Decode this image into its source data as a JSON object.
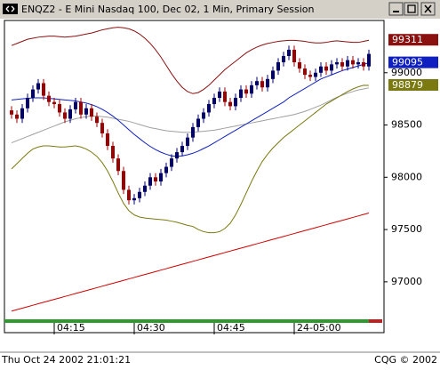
{
  "chart_data": {
    "type": "candlestick",
    "title": "ENQZ2 - E Mini Nasdaq 100, Dec 02, 1 Min, Primary Session",
    "timestamp": "Thu Oct 24 2002 21:01:21",
    "copyright": "CQG © 2002",
    "categories": [
      null,
      null,
      null,
      null,
      null,
      null,
      null,
      null,
      "04:15",
      null,
      null,
      null,
      null,
      null,
      null,
      null,
      null,
      null,
      null,
      null,
      null,
      null,
      null,
      "04:30",
      null,
      null,
      null,
      null,
      null,
      null,
      null,
      null,
      null,
      null,
      null,
      null,
      null,
      null,
      "04:45",
      null,
      null,
      null,
      null,
      null,
      null,
      null,
      null,
      null,
      null,
      null,
      null,
      null,
      null,
      "24-05:00",
      null,
      null,
      null,
      null,
      null,
      null,
      null,
      null,
      null,
      null,
      null,
      null,
      null,
      null
    ],
    "open": [
      98640,
      98600,
      98560,
      98660,
      98760,
      98840,
      98900,
      98780,
      98720,
      98700,
      98620,
      98560,
      98650,
      98720,
      98600,
      98660,
      98580,
      98520,
      98420,
      98300,
      98180,
      98060,
      97880,
      97780,
      97800,
      97860,
      97920,
      98000,
      97960,
      98040,
      98100,
      98180,
      98240,
      98300,
      98380,
      98480,
      98560,
      98620,
      98700,
      98760,
      98820,
      98720,
      98680,
      98760,
      98840,
      98800,
      98880,
      98920,
      98860,
      98940,
      99020,
      99100,
      99160,
      99220,
      99100,
      99040,
      98980,
      98960,
      99000,
      99060,
      99020,
      99080,
      99100,
      99060,
      99120,
      99080,
      99100,
      99060
    ],
    "high": [
      98680,
      98640,
      98700,
      98800,
      98880,
      98940,
      98940,
      98820,
      98760,
      98740,
      98660,
      98690,
      98760,
      98760,
      98700,
      98700,
      98620,
      98560,
      98460,
      98340,
      98220,
      98100,
      97920,
      97840,
      97900,
      97960,
      98040,
      98040,
      98080,
      98140,
      98220,
      98280,
      98340,
      98420,
      98520,
      98600,
      98660,
      98740,
      98800,
      98860,
      98860,
      98760,
      98800,
      98880,
      98880,
      98920,
      98960,
      98960,
      98980,
      99060,
      99140,
      99200,
      99260,
      99260,
      99140,
      99080,
      99020,
      99040,
      99100,
      99100,
      99120,
      99140,
      99140,
      99160,
      99160,
      99140,
      99140,
      99220
    ],
    "low": [
      98560,
      98520,
      98520,
      98620,
      98720,
      98800,
      98740,
      98680,
      98660,
      98580,
      98520,
      98520,
      98610,
      98560,
      98560,
      98540,
      98480,
      98380,
      98260,
      98140,
      98020,
      97840,
      97740,
      97740,
      97760,
      97820,
      97880,
      97920,
      97920,
      98000,
      98060,
      98140,
      98200,
      98260,
      98340,
      98440,
      98520,
      98580,
      98660,
      98720,
      98680,
      98640,
      98640,
      98720,
      98760,
      98760,
      98840,
      98820,
      98820,
      98900,
      98980,
      99060,
      99120,
      99060,
      99000,
      98940,
      98920,
      98920,
      98960,
      98980,
      98980,
      99040,
      99020,
      99020,
      99040,
      99040,
      99020,
      99020
    ],
    "close": [
      98600,
      98560,
      98660,
      98760,
      98840,
      98900,
      98780,
      98720,
      98700,
      98620,
      98560,
      98650,
      98720,
      98600,
      98660,
      98580,
      98520,
      98420,
      98300,
      98180,
      98060,
      97880,
      97780,
      97800,
      97860,
      97920,
      98000,
      97960,
      98040,
      98100,
      98180,
      98240,
      98300,
      98380,
      98480,
      98560,
      98620,
      98700,
      98760,
      98820,
      98720,
      98680,
      98760,
      98840,
      98800,
      98880,
      98920,
      98860,
      98940,
      99020,
      99100,
      99160,
      99220,
      99100,
      99040,
      98980,
      98960,
      99000,
      99060,
      99020,
      99080,
      99100,
      99060,
      99120,
      99080,
      99100,
      99060,
      99180
    ],
    "up_color": "#00006e",
    "down_color": "#9c0000",
    "series": [
      {
        "color": "#a0a0a0",
        "value_flag": false,
        "values": [
          98330,
          98350,
          98370,
          98390,
          98410,
          98430,
          98450,
          98470,
          98490,
          98510,
          98530,
          98545,
          98560,
          98570,
          98580,
          98585,
          98585,
          98580,
          98575,
          98565,
          98555,
          98545,
          98535,
          98520,
          98505,
          98490,
          98475,
          98465,
          98455,
          98445,
          98440,
          98435,
          98430,
          98430,
          98430,
          98435,
          98440,
          98445,
          98450,
          98460,
          98470,
          98480,
          98490,
          98500,
          98510,
          98520,
          98530,
          98540,
          98550,
          98560,
          98570,
          98580,
          98590,
          98600,
          98615,
          98630,
          98650,
          98670,
          98690,
          98715,
          98740,
          98765,
          98785,
          98805,
          98820,
          98835,
          98845,
          98855
        ]
      },
      {
        "color": "#d00000",
        "value_flag": false,
        "values": [
          96720,
          96734,
          96748,
          96762,
          96776,
          96790,
          96804,
          96818,
          96832,
          96846,
          96860,
          96874,
          96888,
          96902,
          96916,
          96930,
          96944,
          96958,
          96972,
          96986,
          97000,
          97014,
          97028,
          97042,
          97056,
          97070,
          97084,
          97098,
          97112,
          97126,
          97140,
          97154,
          97168,
          97182,
          97196,
          97210,
          97224,
          97238,
          97252,
          97266,
          97280,
          97294,
          97308,
          97322,
          97336,
          97350,
          97364,
          97378,
          97392,
          97406,
          97420,
          97434,
          97448,
          97462,
          97476,
          97490,
          97504,
          97518,
          97532,
          97546,
          97560,
          97574,
          97588,
          97602,
          97616,
          97630,
          97644,
          97658
        ]
      },
      {
        "color": "#8b1010",
        "value_flag": true,
        "values": [
          99260,
          99280,
          99300,
          99320,
          99330,
          99340,
          99345,
          99350,
          99350,
          99345,
          99340,
          99345,
          99350,
          99360,
          99370,
          99380,
          99395,
          99410,
          99420,
          99430,
          99435,
          99430,
          99420,
          99400,
          99370,
          99330,
          99280,
          99220,
          99150,
          99070,
          98990,
          98920,
          98860,
          98820,
          98800,
          98810,
          98840,
          98880,
          98930,
          98980,
          99030,
          99070,
          99110,
          99150,
          99190,
          99220,
          99245,
          99265,
          99280,
          99290,
          99300,
          99305,
          99310,
          99310,
          99305,
          99300,
          99290,
          99285,
          99285,
          99290,
          99300,
          99305,
          99300,
          99295,
          99290,
          99290,
          99300,
          99311
        ]
      },
      {
        "color": "#1020c0",
        "value_flag": true,
        "values": [
          98740,
          98745,
          98750,
          98755,
          98760,
          98760,
          98760,
          98755,
          98750,
          98745,
          98740,
          98735,
          98730,
          98720,
          98710,
          98695,
          98675,
          98650,
          98620,
          98585,
          98545,
          98500,
          98455,
          98410,
          98370,
          98330,
          98295,
          98265,
          98240,
          98220,
          98205,
          98200,
          98205,
          98215,
          98230,
          98250,
          98275,
          98300,
          98330,
          98360,
          98390,
          98420,
          98450,
          98480,
          98510,
          98540,
          98570,
          98600,
          98630,
          98660,
          98690,
          98720,
          98760,
          98790,
          98820,
          98850,
          98880,
          98910,
          98940,
          98960,
          98980,
          99000,
          99020,
          99035,
          99050,
          99065,
          99080,
          99095
        ]
      },
      {
        "color": "#7a7a10",
        "value_flag": true,
        "values": [
          98080,
          98130,
          98180,
          98230,
          98270,
          98290,
          98300,
          98300,
          98295,
          98290,
          98290,
          98295,
          98300,
          98290,
          98270,
          98240,
          98200,
          98140,
          98060,
          97960,
          97850,
          97750,
          97680,
          97640,
          97620,
          97610,
          97605,
          97600,
          97595,
          97590,
          97580,
          97570,
          97555,
          97540,
          97530,
          97500,
          97480,
          97470,
          97470,
          97480,
          97510,
          97560,
          97640,
          97740,
          97850,
          97960,
          98060,
          98150,
          98220,
          98280,
          98330,
          98380,
          98420,
          98460,
          98500,
          98540,
          98580,
          98620,
          98660,
          98700,
          98730,
          98760,
          98790,
          98820,
          98845,
          98865,
          98880,
          98879
        ]
      }
    ],
    "ylim": [
      96650,
      99500
    ],
    "yticks": [
      97000,
      97500,
      98000,
      98500,
      99000
    ],
    "grid": false
  }
}
